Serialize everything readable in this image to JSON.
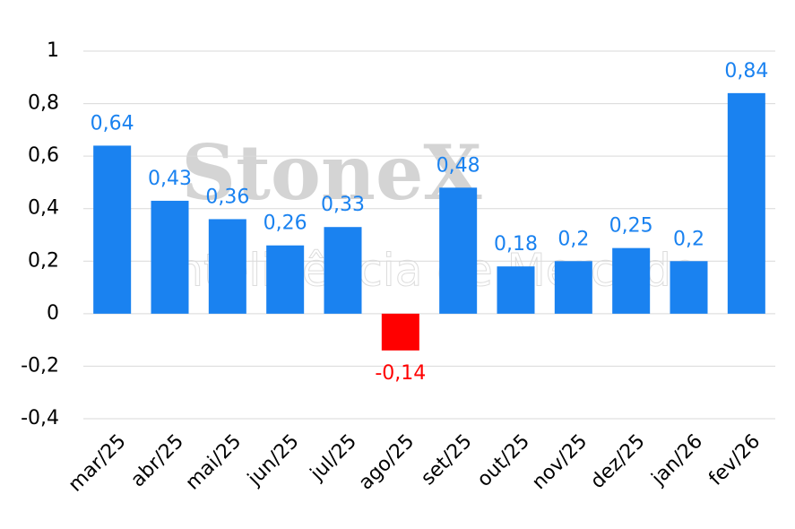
{
  "chart_data": {
    "type": "bar",
    "watermark": {
      "brand": "StoneX",
      "tagline": "Inteligência de Mercado"
    },
    "categories": [
      "mar/25",
      "abr/25",
      "mai/25",
      "jun/25",
      "jul/25",
      "ago/25",
      "set/25",
      "out/25",
      "nov/25",
      "dez/25",
      "jan/26",
      "fev/26"
    ],
    "values": [
      0.64,
      0.43,
      0.36,
      0.26,
      0.33,
      -0.14,
      0.48,
      0.18,
      0.2,
      0.25,
      0.2,
      0.84
    ],
    "value_labels": [
      "0,64",
      "0,43",
      "0,36",
      "0,26",
      "0,33",
      "-0,14",
      "0,48",
      "0,18",
      "0,2",
      "0,25",
      "0,2",
      "0,84"
    ],
    "colors": [
      "#1a82f0",
      "#1a82f0",
      "#1a82f0",
      "#1a82f0",
      "#1a82f0",
      "#ff0000",
      "#1a82f0",
      "#1a82f0",
      "#1a82f0",
      "#1a82f0",
      "#1a82f0",
      "#1a82f0"
    ],
    "ylim": [
      -0.4,
      1
    ],
    "yticks": [
      {
        "value": -0.4,
        "label": "-0,4"
      },
      {
        "value": -0.2,
        "label": "-0,2"
      },
      0,
      {
        "value": 0.2,
        "label": "0,2"
      },
      {
        "value": 0.4,
        "label": "0,4"
      },
      {
        "value": 0.6,
        "label": "0,6"
      },
      {
        "value": 0.8,
        "label": "0,8"
      },
      1
    ],
    "grid": true
  }
}
